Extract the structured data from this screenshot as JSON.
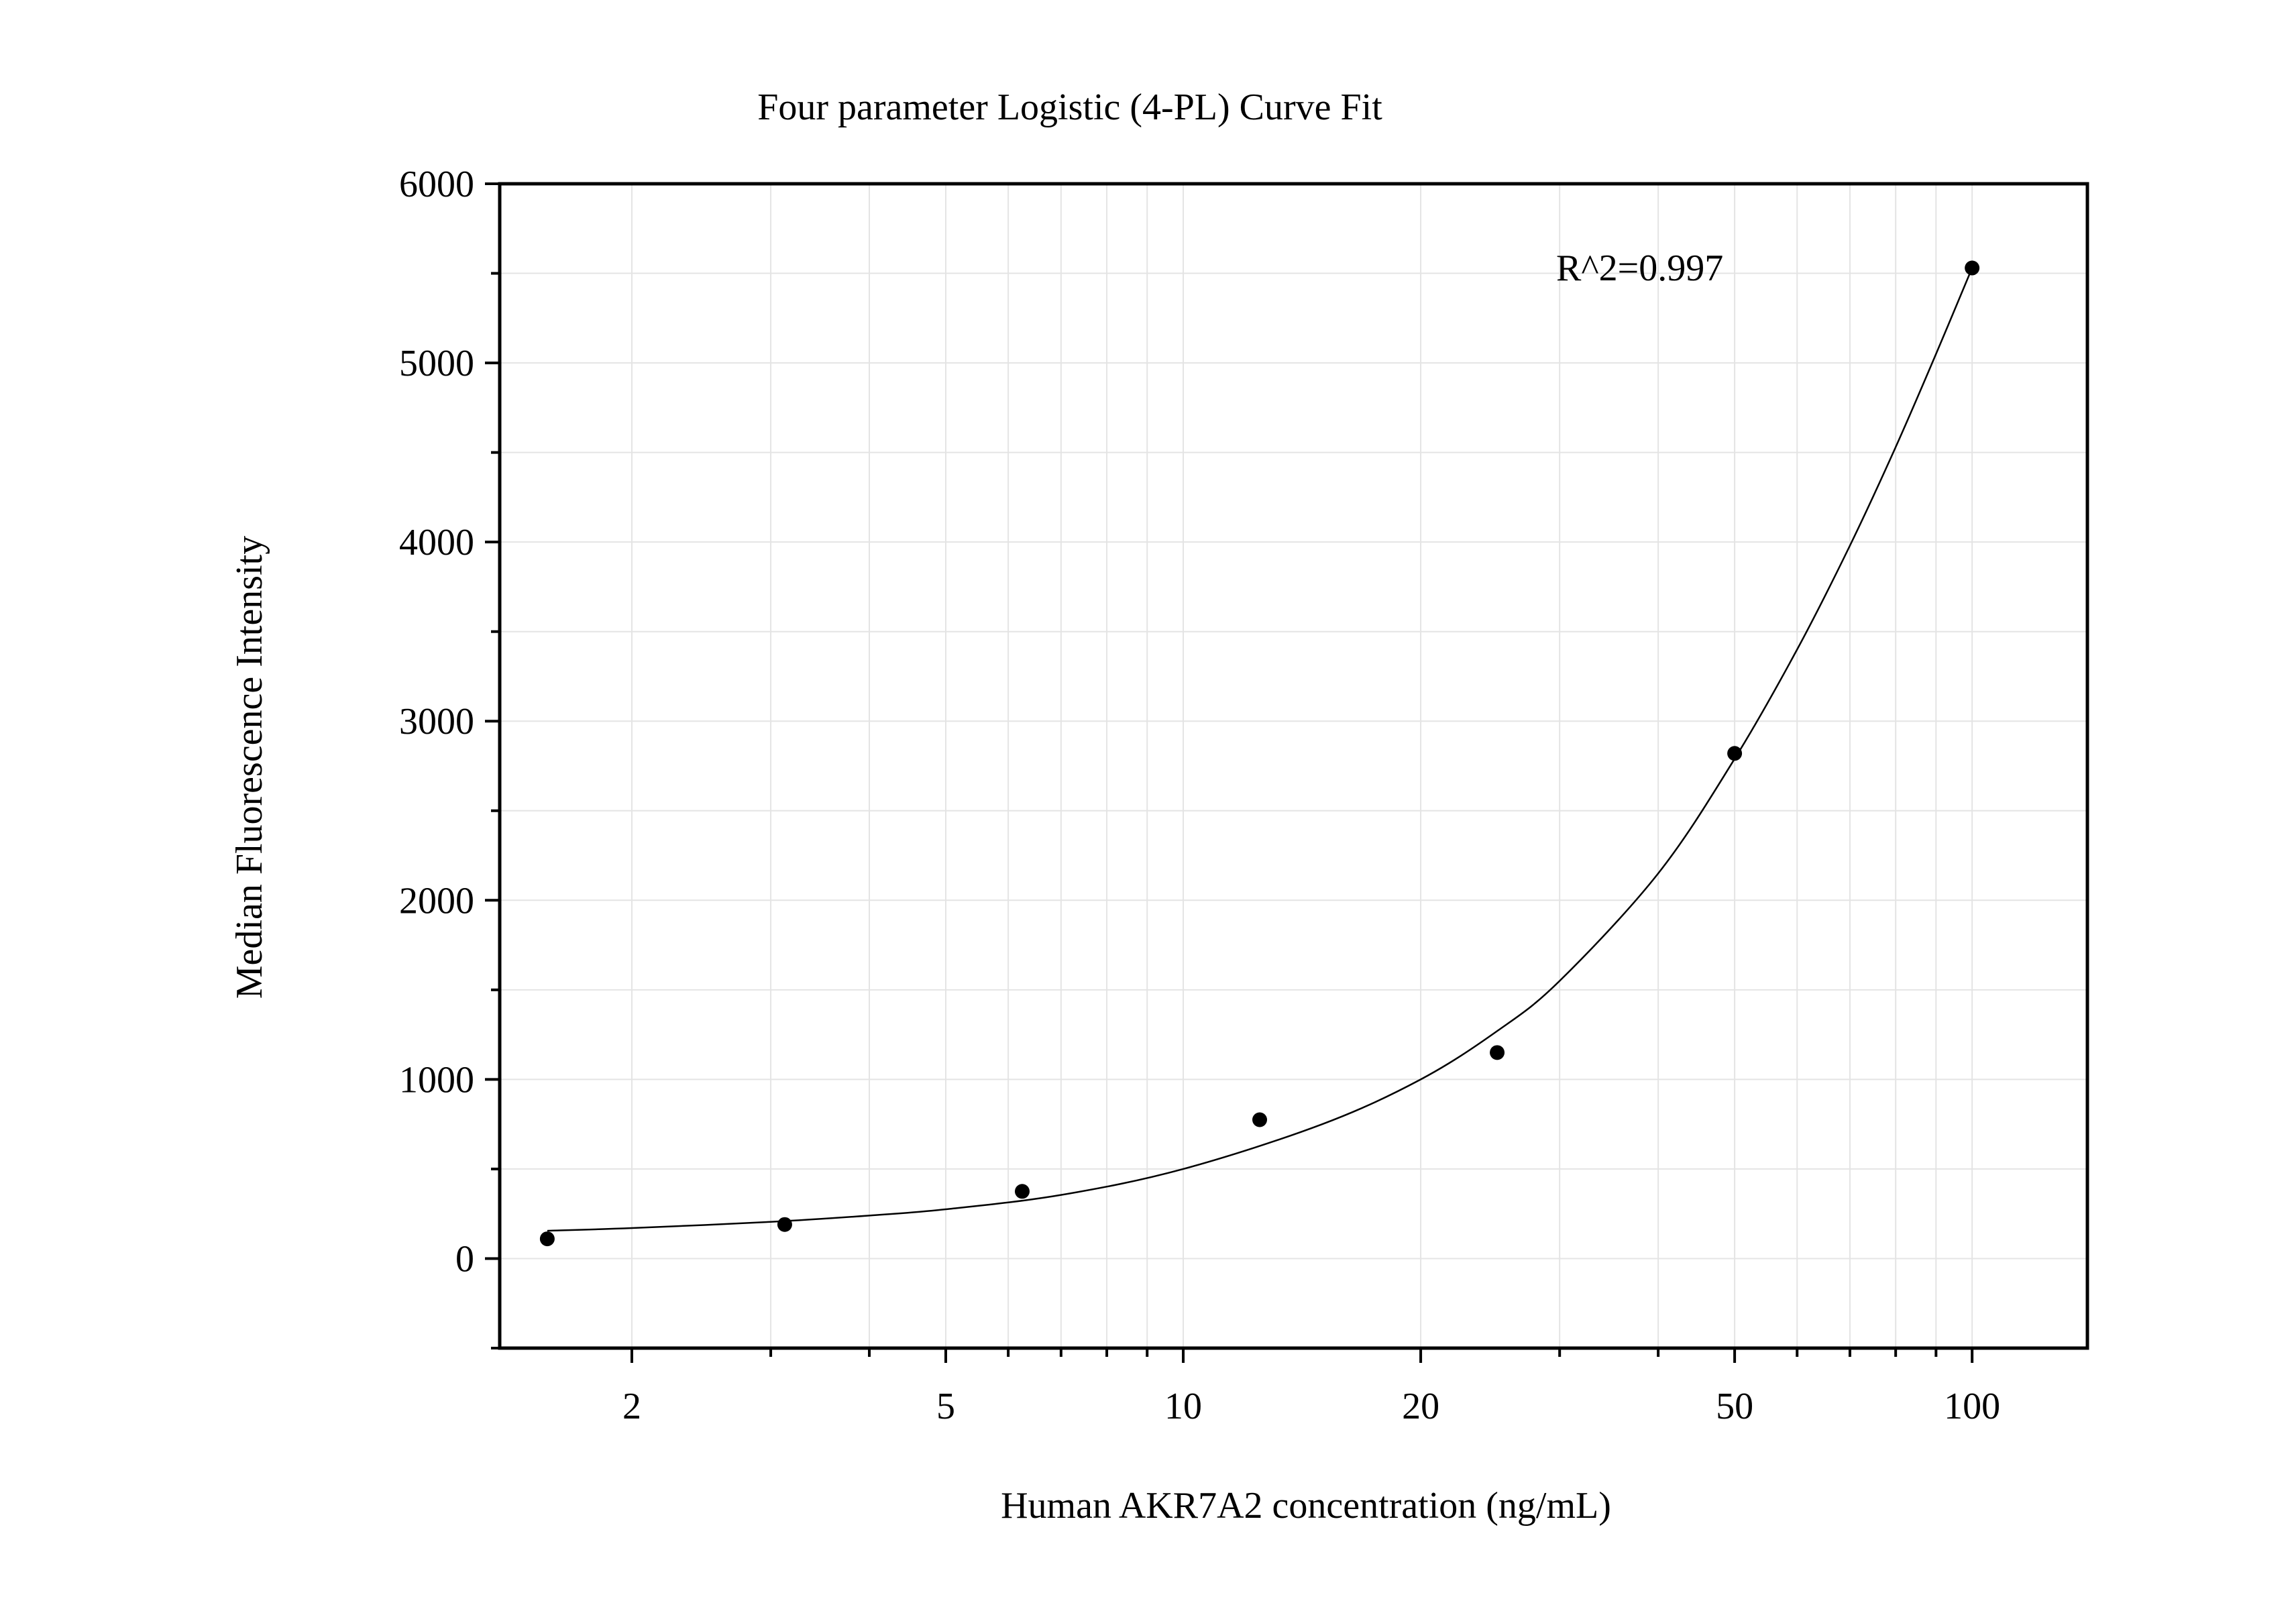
{
  "chart_data": {
    "type": "scatter",
    "title": "Four parameter Logistic (4-PL) Curve Fit",
    "xlabel": "Human AKR7A2 concentration (ng/mL)",
    "ylabel": "Median Fluorescence Intensity",
    "x_scale": "log",
    "xlim": [
      1.36,
      140
    ],
    "ylim": [
      -500,
      6000
    ],
    "x_ticks": [
      2,
      5,
      10,
      20,
      50,
      100
    ],
    "x_tick_labels": [
      "2",
      "5",
      "10",
      "20",
      "50",
      "100"
    ],
    "y_ticks": [
      0,
      1000,
      2000,
      3000,
      4000,
      5000,
      6000
    ],
    "y_tick_labels": [
      "0",
      "1000",
      "2000",
      "3000",
      "4000",
      "5000",
      "6000"
    ],
    "grid": true,
    "annotation": "R^2=0.997",
    "series": [
      {
        "x": [
          1.5625,
          3.125,
          6.25,
          12.5,
          25,
          50,
          100
        ],
        "y": [
          110,
          190,
          375,
          775,
          1150,
          2820,
          5530
        ]
      }
    ],
    "fit_curve": {
      "type": "4PL",
      "x_range": [
        1.5625,
        100
      ],
      "points": [
        [
          1.5625,
          155
        ],
        [
          2,
          170
        ],
        [
          3,
          205
        ],
        [
          4,
          240
        ],
        [
          5,
          275
        ],
        [
          7,
          355
        ],
        [
          10,
          500
        ],
        [
          15,
          750
        ],
        [
          20,
          1000
        ],
        [
          25,
          1270
        ],
        [
          30,
          1550
        ],
        [
          40,
          2150
        ],
        [
          50,
          2790
        ],
        [
          60,
          3400
        ],
        [
          70,
          3980
        ],
        [
          80,
          4530
        ],
        [
          90,
          5050
        ],
        [
          100,
          5530
        ]
      ]
    },
    "colors": {
      "points": "#000000",
      "curve": "#000000",
      "grid": "#e4e4e4",
      "axes": "#000000"
    }
  }
}
